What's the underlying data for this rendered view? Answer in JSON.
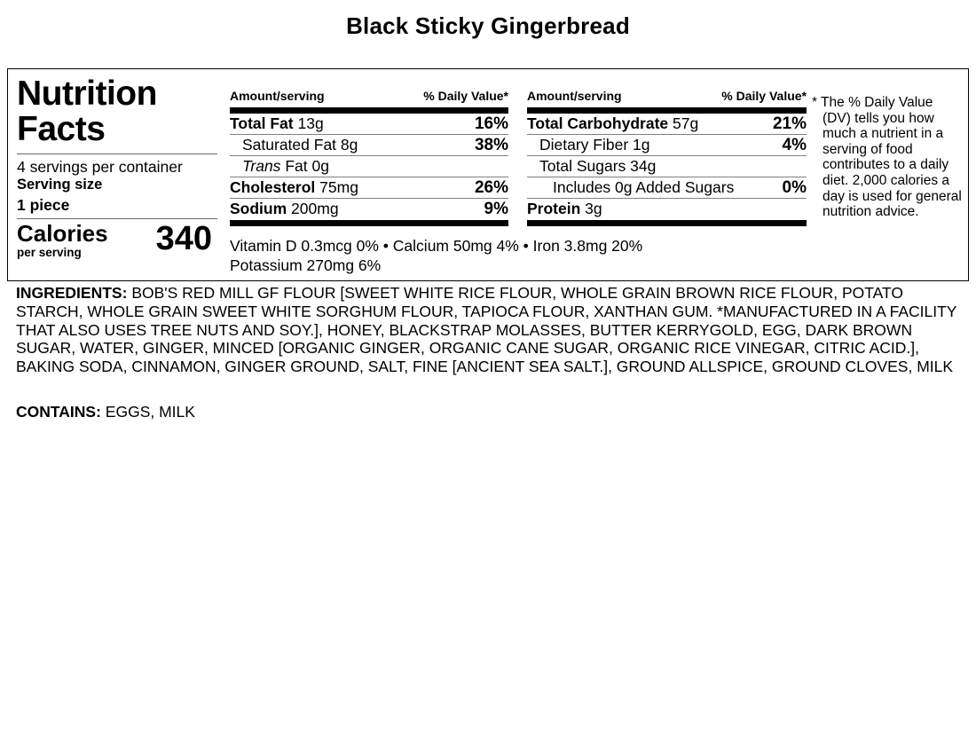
{
  "page": {
    "title": "Black Sticky Gingerbread"
  },
  "label": {
    "heading": "Nutrition Facts",
    "servings_per_container": "4 servings per container",
    "serving_size_label": "Serving size",
    "serving_size_value": "1 piece",
    "calories_label": "Calories",
    "calories_sub": "per serving",
    "calories_value": "340",
    "col_header_amount": "Amount/serving",
    "col_header_dv": "% Daily Value*",
    "columns": [
      {
        "rows": [
          {
            "lead": "Total Fat",
            "rest": "13g",
            "dv": "16%"
          },
          {
            "lead": "Saturated Fat",
            "rest": "8g",
            "dv": "38%"
          },
          {
            "lead": "Trans",
            "rest": "Fat 0g",
            "dv": ""
          },
          {
            "lead": "Cholesterol",
            "rest": "75mg",
            "dv": "26%"
          },
          {
            "lead": "Sodium",
            "rest": "200mg",
            "dv": "9%"
          }
        ]
      },
      {
        "rows": [
          {
            "lead": "Total Carbohydrate",
            "rest": "57g",
            "dv": "21%"
          },
          {
            "lead": "Dietary Fiber",
            "rest": "1g",
            "dv": "4%"
          },
          {
            "lead": "Total Sugars",
            "rest": "34g",
            "dv": ""
          },
          {
            "lead": "Includes 0g Added Sugars",
            "rest": "",
            "dv": "0%"
          },
          {
            "lead": "Protein",
            "rest": "3g",
            "dv": ""
          }
        ]
      }
    ],
    "micronutrients_line1": "Vitamin D 0.3mcg 0% • Calcium 50mg 4% • Iron 3.8mg 20%",
    "micronutrients_line2": "Potassium 270mg 6%",
    "footnote": "* The % Daily Value (DV) tells you how much a nutrient in a serving of food contributes to a daily diet. 2,000 calories a day is used for general nutrition advice."
  },
  "ingredients": {
    "label": "INGREDIENTS:",
    "text": "BOB'S RED MILL GF FLOUR [SWEET WHITE RICE FLOUR, WHOLE GRAIN BROWN RICE FLOUR, POTATO STARCH, WHOLE GRAIN SWEET WHITE SORGHUM FLOUR, TAPIOCA FLOUR, XANTHAN GUM. *MANUFACTURED IN A FACILITY THAT ALSO USES TREE NUTS AND SOY.], HONEY, BLACKSTRAP MOLASSES, BUTTER KERRYGOLD, EGG, DARK BROWN SUGAR, WATER, GINGER, MINCED [ORGANIC GINGER, ORGANIC CANE SUGAR, ORGANIC RICE VINEGAR, CITRIC ACID.], BAKING SODA, CINNAMON, GINGER GROUND, SALT, FINE [ANCIENT SEA SALT.], GROUND ALLSPICE, GROUND CLOVES, MILK"
  },
  "contains": {
    "label": "CONTAINS:",
    "text": "EGGS, MILK"
  },
  "colors": {
    "text": "#000000",
    "thick_bar": "#000000",
    "thin_rule": "#7f7f7f",
    "background": "#ffffff"
  }
}
